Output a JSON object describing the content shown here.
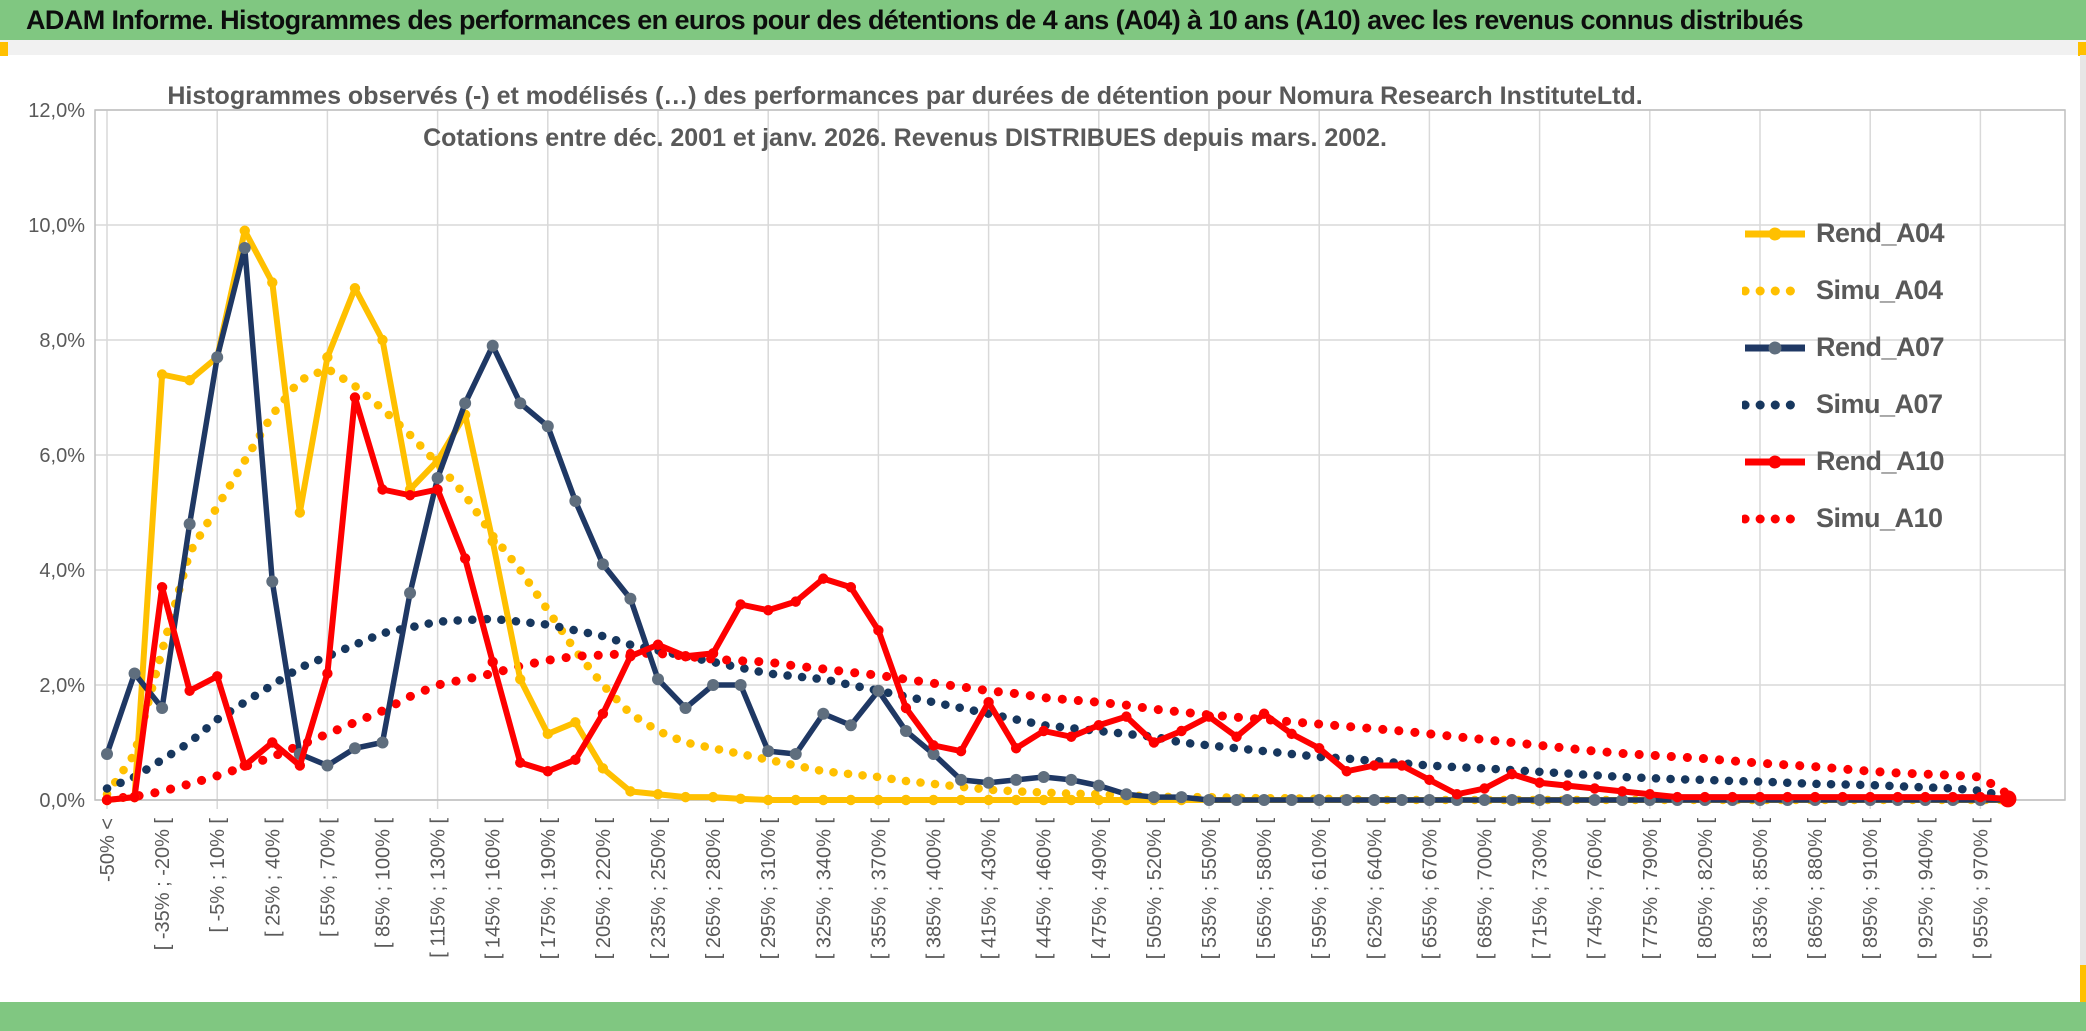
{
  "window": {
    "title": "ADAM Informe. Histogrammes des performances en euros pour des détentions de 4 ans (A04) à 10 ans (A10) avec les revenus connus distribués"
  },
  "accents": {
    "band_green": "#80C781",
    "accent_gold": "#FFC000",
    "strip_gray": "#E7E6E6",
    "grid_gray": "#D9D9D9",
    "text_gray": "#595959"
  },
  "chart_data": {
    "type": "line",
    "title": "Histogrammes observés (-) et modélisés (…) des performances par durées de détention pour Nomura Research InstituteLtd.",
    "subtitle": "Cotations entre déc. 2001 et janv. 2026. Revenus DISTRIBUES depuis mars. 2002.",
    "xlabel": "",
    "ylabel": "",
    "ylim": [
      0,
      12
    ],
    "ytick_step": 2,
    "ytick_labels": [
      "0,0%",
      "2,0%",
      "4,0%",
      "6,0%",
      "8,0%",
      "10,0%",
      "12,0%"
    ],
    "grid": true,
    "legend_position": "right",
    "bins_total": 70,
    "bin_width_pct": 15,
    "x_label_every": 2,
    "categories": [
      "-50% <",
      "[ -35% ; -20% [",
      "[ -5% ; 10% [",
      "[ 25% ; 40% [",
      "[ 55% ; 70% [",
      "[ 85% ; 100% [",
      "[ 115% ; 130% [",
      "[ 145% ; 160% [",
      "[ 175% ; 190% [",
      "[ 205% ; 220% [",
      "[ 235% ; 250% [",
      "[ 265% ; 280% [",
      "[ 295% ; 310% [",
      "[ 325% ; 340% [",
      "[ 355% ; 370% [",
      "[ 385% ; 400% [",
      "[ 415% ; 430% [",
      "[ 445% ; 460% [",
      "[ 475% ; 490% [",
      "[ 505% ; 520% [",
      "[ 535% ; 550% [",
      "[ 565% ; 580% [",
      "[ 595% ; 610% [",
      "[ 625% ; 640% [",
      "[ 655% ; 670% [",
      "[ 685% ; 700% [",
      "[ 715% ; 730% [",
      "[ 745% ; 760% [",
      "[ 775% ; 790% [",
      "[ 805% ; 820% [",
      "[ 835% ; 850% [",
      "[ 865% ; 880% [",
      "[ 895% ; 910% [",
      "[ 925% ; 940% [",
      "[ 955% ; 970% ["
    ],
    "series": [
      {
        "name": "Rend_A04",
        "style": "solid",
        "color": "#FFC000",
        "marker_color": "#FFC000",
        "values": [
          0,
          0.05,
          7.4,
          7.3,
          7.7,
          9.9,
          9.0,
          5.0,
          7.7,
          8.9,
          8.0,
          5.4,
          5.9,
          6.7,
          4.5,
          2.1,
          1.15,
          1.35,
          0.55,
          0.15,
          0.1,
          0.05,
          0.05,
          0.02,
          0,
          0,
          0,
          0,
          0,
          0,
          0,
          0,
          0,
          0,
          0,
          0,
          0,
          0,
          0,
          0,
          0,
          0,
          0,
          0,
          0,
          0,
          0,
          0,
          0,
          0,
          0,
          0,
          0,
          0,
          0,
          0,
          0,
          0,
          0,
          0,
          0,
          0,
          0,
          0,
          0,
          0,
          0,
          0,
          0,
          0
        ]
      },
      {
        "name": "Simu_A04",
        "style": "dotted",
        "color": "#FFC000",
        "values": [
          0.1,
          0.8,
          2.6,
          4.3,
          5.1,
          5.9,
          6.7,
          7.3,
          7.5,
          7.2,
          6.8,
          6.35,
          5.85,
          5.3,
          4.6,
          4.0,
          3.3,
          2.6,
          2.0,
          1.5,
          1.2,
          1.0,
          0.9,
          0.8,
          0.7,
          0.6,
          0.5,
          0.45,
          0.4,
          0.33,
          0.28,
          0.23,
          0.18,
          0.15,
          0.13,
          0.11,
          0.1,
          0.08,
          0.06,
          0.05,
          0.05,
          0.04,
          0.03,
          0.03,
          0.02,
          0.02,
          0,
          0,
          0,
          0,
          0,
          0,
          0,
          0,
          0,
          0,
          0,
          0,
          0,
          0,
          0,
          0,
          0,
          0,
          0,
          0,
          0,
          0,
          0,
          0
        ]
      },
      {
        "name": "Rend_A07",
        "style": "solid",
        "color": "#1F3864",
        "marker_color": "#5F6E7E",
        "values": [
          0.8,
          2.2,
          1.6,
          4.8,
          7.7,
          9.6,
          3.8,
          0.8,
          0.6,
          0.9,
          1.0,
          3.6,
          5.6,
          6.9,
          7.9,
          6.9,
          6.5,
          5.2,
          4.1,
          3.5,
          2.1,
          1.6,
          2.0,
          2.0,
          0.85,
          0.8,
          1.5,
          1.3,
          1.9,
          1.2,
          0.8,
          0.35,
          0.3,
          0.35,
          0.4,
          0.35,
          0.25,
          0.1,
          0.05,
          0.05,
          0,
          0,
          0,
          0,
          0,
          0,
          0,
          0,
          0,
          0,
          0,
          0,
          0,
          0,
          0,
          0,
          0,
          0,
          0,
          0,
          0,
          0,
          0,
          0,
          0,
          0,
          0,
          0,
          0,
          0
        ]
      },
      {
        "name": "Simu_A07",
        "style": "dotted",
        "color": "#17375E",
        "values": [
          0.2,
          0.4,
          0.7,
          1.0,
          1.4,
          1.7,
          2.0,
          2.3,
          2.5,
          2.7,
          2.9,
          3.0,
          3.1,
          3.13,
          3.15,
          3.1,
          3.05,
          2.95,
          2.85,
          2.7,
          2.6,
          2.5,
          2.4,
          2.3,
          2.2,
          2.15,
          2.1,
          2.0,
          1.9,
          1.8,
          1.7,
          1.6,
          1.5,
          1.4,
          1.3,
          1.25,
          1.2,
          1.15,
          1.1,
          1.0,
          0.95,
          0.9,
          0.85,
          0.8,
          0.75,
          0.72,
          0.68,
          0.64,
          0.6,
          0.57,
          0.55,
          0.52,
          0.49,
          0.46,
          0.43,
          0.4,
          0.38,
          0.36,
          0.35,
          0.33,
          0.32,
          0.3,
          0.28,
          0.27,
          0.26,
          0.24,
          0.22,
          0.2,
          0.16,
          0.05
        ]
      },
      {
        "name": "Rend_A10",
        "style": "solid",
        "color": "#FE0000",
        "marker_color": "#FE0000",
        "values": [
          0,
          0.05,
          3.7,
          1.9,
          2.15,
          0.6,
          1.0,
          0.6,
          2.2,
          7.0,
          5.4,
          5.3,
          5.4,
          4.2,
          2.4,
          0.65,
          0.5,
          0.7,
          1.5,
          2.5,
          2.7,
          2.5,
          2.55,
          3.4,
          3.3,
          3.45,
          3.85,
          3.7,
          2.95,
          1.6,
          0.95,
          0.85,
          1.7,
          0.9,
          1.2,
          1.1,
          1.3,
          1.45,
          1.0,
          1.2,
          1.45,
          1.1,
          1.5,
          1.15,
          0.9,
          0.5,
          0.6,
          0.6,
          0.35,
          0.1,
          0.2,
          0.45,
          0.3,
          0.25,
          0.2,
          0.15,
          0.1,
          0.05,
          0.05,
          0.05,
          0.05,
          0.05,
          0.05,
          0.05,
          0.05,
          0.05,
          0.05,
          0.05,
          0.05,
          0.02
        ]
      },
      {
        "name": "Simu_A10",
        "style": "dotted",
        "color": "#FE0000",
        "values": [
          0.02,
          0.06,
          0.15,
          0.28,
          0.42,
          0.58,
          0.75,
          0.95,
          1.15,
          1.35,
          1.55,
          1.8,
          2.0,
          2.1,
          2.2,
          2.33,
          2.43,
          2.5,
          2.52,
          2.55,
          2.55,
          2.5,
          2.45,
          2.42,
          2.4,
          2.33,
          2.28,
          2.22,
          2.17,
          2.1,
          2.03,
          1.97,
          1.9,
          1.85,
          1.78,
          1.74,
          1.7,
          1.65,
          1.58,
          1.53,
          1.48,
          1.44,
          1.4,
          1.36,
          1.32,
          1.28,
          1.24,
          1.2,
          1.15,
          1.1,
          1.05,
          1.0,
          0.95,
          0.9,
          0.85,
          0.81,
          0.78,
          0.75,
          0.72,
          0.68,
          0.64,
          0.61,
          0.58,
          0.54,
          0.5,
          0.47,
          0.45,
          0.43,
          0.4,
          0.1
        ]
      }
    ]
  }
}
